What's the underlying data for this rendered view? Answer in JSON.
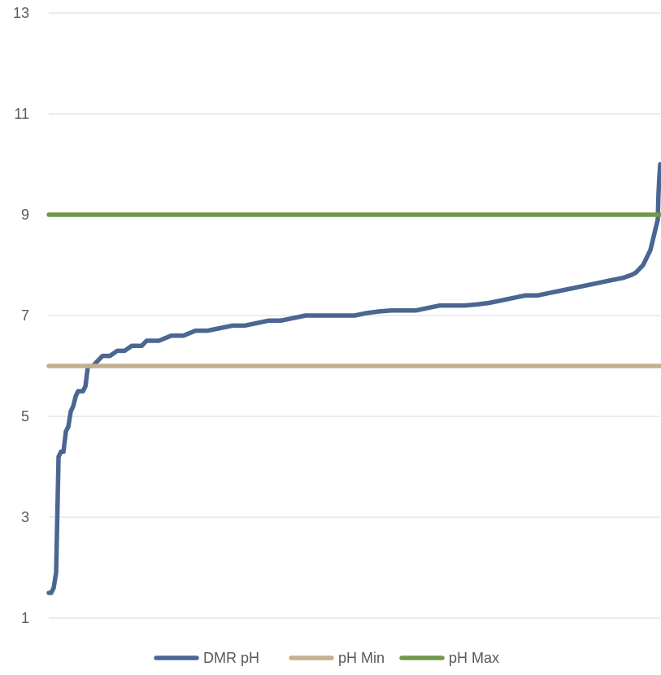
{
  "chart_data": {
    "type": "line",
    "title": "",
    "xlabel": "",
    "ylabel": "",
    "ylim": [
      1,
      13
    ],
    "yticks": [
      1,
      3,
      5,
      7,
      9,
      11,
      13
    ],
    "grid": "horizontal",
    "legend_position": "bottom",
    "x_count": 250,
    "series": [
      {
        "name": "DMR pH",
        "color": "#4a6691",
        "points": [
          [
            0,
            1.5
          ],
          [
            1,
            1.5
          ],
          [
            2,
            1.6
          ],
          [
            3,
            1.9
          ],
          [
            4,
            4.2
          ],
          [
            5,
            4.3
          ],
          [
            6,
            4.3
          ],
          [
            7,
            4.7
          ],
          [
            8,
            4.8
          ],
          [
            9,
            5.1
          ],
          [
            10,
            5.2
          ],
          [
            11,
            5.4
          ],
          [
            12,
            5.5
          ],
          [
            14,
            5.5
          ],
          [
            15,
            5.6
          ],
          [
            16,
            6.0
          ],
          [
            18,
            6.0
          ],
          [
            20,
            6.1
          ],
          [
            22,
            6.2
          ],
          [
            25,
            6.2
          ],
          [
            28,
            6.3
          ],
          [
            31,
            6.3
          ],
          [
            34,
            6.4
          ],
          [
            38,
            6.4
          ],
          [
            40,
            6.5
          ],
          [
            45,
            6.5
          ],
          [
            50,
            6.6
          ],
          [
            55,
            6.6
          ],
          [
            60,
            6.7
          ],
          [
            65,
            6.7
          ],
          [
            70,
            6.75
          ],
          [
            75,
            6.8
          ],
          [
            80,
            6.8
          ],
          [
            85,
            6.85
          ],
          [
            90,
            6.9
          ],
          [
            95,
            6.9
          ],
          [
            100,
            6.95
          ],
          [
            105,
            7.0
          ],
          [
            110,
            7.0
          ],
          [
            115,
            7.0
          ],
          [
            120,
            7.0
          ],
          [
            125,
            7.0
          ],
          [
            130,
            7.05
          ],
          [
            135,
            7.08
          ],
          [
            140,
            7.1
          ],
          [
            145,
            7.1
          ],
          [
            150,
            7.1
          ],
          [
            155,
            7.15
          ],
          [
            160,
            7.2
          ],
          [
            165,
            7.2
          ],
          [
            170,
            7.2
          ],
          [
            175,
            7.22
          ],
          [
            180,
            7.25
          ],
          [
            185,
            7.3
          ],
          [
            190,
            7.35
          ],
          [
            195,
            7.4
          ],
          [
            200,
            7.4
          ],
          [
            205,
            7.45
          ],
          [
            210,
            7.5
          ],
          [
            215,
            7.55
          ],
          [
            220,
            7.6
          ],
          [
            225,
            7.65
          ],
          [
            230,
            7.7
          ],
          [
            235,
            7.75
          ],
          [
            238,
            7.8
          ],
          [
            240,
            7.85
          ],
          [
            242,
            7.95
          ],
          [
            243,
            8.0
          ],
          [
            244,
            8.1
          ],
          [
            245,
            8.2
          ],
          [
            246,
            8.3
          ],
          [
            246.5,
            8.4
          ],
          [
            247,
            8.5
          ],
          [
            247.5,
            8.6
          ],
          [
            248,
            8.7
          ],
          [
            248.5,
            8.8
          ],
          [
            249,
            8.9
          ],
          [
            249.3,
            9.4
          ],
          [
            249.6,
            9.7
          ],
          [
            250,
            10.0
          ]
        ]
      },
      {
        "name": "pH Min",
        "color": "#c4b08e",
        "points": [
          [
            0,
            6
          ],
          [
            250,
            6
          ]
        ]
      },
      {
        "name": "pH Max",
        "color": "#71974a",
        "points": [
          [
            0,
            9
          ],
          [
            250,
            9
          ]
        ]
      }
    ]
  }
}
